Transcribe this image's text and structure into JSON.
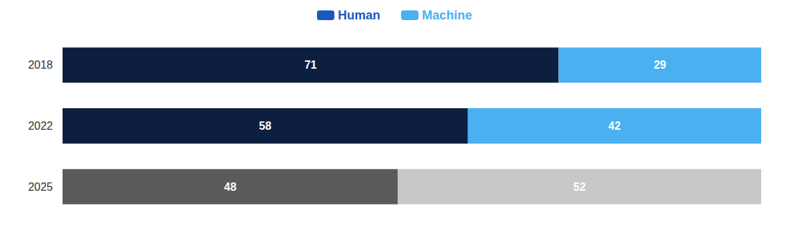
{
  "chart_data": {
    "type": "bar",
    "orientation": "horizontal",
    "stacked": true,
    "data_labels": true,
    "tick_labels": "y",
    "grid": false,
    "legend": "top",
    "categories": [
      "2018",
      "2022",
      "2025"
    ],
    "series": [
      {
        "name": "Human",
        "color": "#1a5abf",
        "colors": [
          "#0d1f40",
          "#0d1f40",
          "#5a5a5a"
        ],
        "values": [
          71,
          58,
          48
        ]
      },
      {
        "name": "Machine",
        "color": "#4ab0f0",
        "colors": [
          "#4ab0f0",
          "#4ab0f0",
          "#c8c8c8"
        ],
        "values": [
          29,
          42,
          52
        ]
      }
    ],
    "xlim": [
      0,
      100
    ]
  }
}
